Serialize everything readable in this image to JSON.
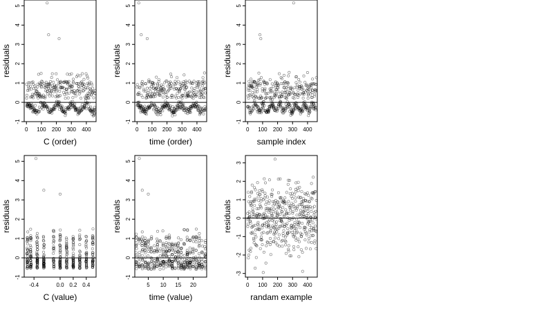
{
  "figure": {
    "colors": {
      "ink": "#000000",
      "point": "#000000",
      "background": "#ffffff"
    }
  },
  "chart_data": [
    {
      "type": "scatter",
      "xlabel": "C (order)",
      "ylabel": "residuals",
      "xlim": [
        -15,
        465
      ],
      "ylim": [
        -1,
        5.3
      ],
      "xticks": [
        0,
        100,
        200,
        300,
        400
      ],
      "xtick_labels": [
        "0",
        "100",
        "200",
        "300",
        "400"
      ],
      "yticks": [
        -1,
        0,
        1,
        2,
        3,
        4,
        5
      ],
      "ytick_labels": [
        "-1",
        "0",
        "1",
        "2",
        "3",
        "4",
        "5"
      ],
      "hline": 0,
      "n_points": 460,
      "outliers": [
        [
          138,
          5.15
        ],
        [
          148,
          3.5
        ],
        [
          218,
          3.3
        ]
      ],
      "pattern": "ordered by C: residuals -0.6 to 1.5, wavy cluster below zero"
    },
    {
      "type": "scatter",
      "xlabel": "time (order)",
      "ylabel": "residuals",
      "xlim": [
        -15,
        465
      ],
      "ylim": [
        -1,
        5.3
      ],
      "xticks": [
        0,
        100,
        200,
        300,
        400
      ],
      "xtick_labels": [
        "0",
        "100",
        "200",
        "300",
        "400"
      ],
      "yticks": [
        -1,
        0,
        1,
        2,
        3,
        4,
        5
      ],
      "ytick_labels": [
        "-1",
        "0",
        "1",
        "2",
        "3",
        "4",
        "5"
      ],
      "hline": 0,
      "n_points": 460,
      "outliers": [
        [
          12,
          5.15
        ],
        [
          28,
          3.5
        ],
        [
          68,
          3.3
        ]
      ],
      "pattern": "ordered by time: residuals -0.6 to 1.5, wavy cluster below zero"
    },
    {
      "type": "scatter",
      "xlabel": "sample index",
      "ylabel": "residuals",
      "xlim": [
        -15,
        465
      ],
      "ylim": [
        -1,
        5.3
      ],
      "xticks": [
        0,
        100,
        200,
        300,
        400
      ],
      "xtick_labels": [
        "0",
        "100",
        "200",
        "300",
        "400"
      ],
      "yticks": [
        -1,
        0,
        1,
        2,
        3,
        4,
        5
      ],
      "ytick_labels": [
        "-1",
        "0",
        "1",
        "2",
        "3",
        "4",
        "5"
      ],
      "hline": 0,
      "n_points": 460,
      "outliers": [
        [
          307,
          5.15
        ],
        [
          82,
          3.5
        ],
        [
          88,
          3.3
        ]
      ],
      "pattern": "sample order: residuals -0.6 to 1.5 with periodic dips below zero"
    },
    {
      "type": "scatter",
      "xlabel": "C (value)",
      "ylabel": "residuals",
      "xlim": [
        -0.55,
        0.55
      ],
      "ylim": [
        -1,
        5.3
      ],
      "xticks": [
        -0.4,
        0.0,
        0.2,
        0.4
      ],
      "xtick_labels": [
        "-0.4",
        "0.0",
        "0.2",
        "0.4"
      ],
      "yticks": [
        -1,
        0,
        1,
        2,
        3,
        4,
        5
      ],
      "ytick_labels": [
        "-1",
        "0",
        "1",
        "2",
        "3",
        "4",
        "5"
      ],
      "hline": 0,
      "n_points": 420,
      "columns": [
        -0.5,
        -0.45,
        -0.35,
        -0.25,
        -0.1,
        0.0,
        0.1,
        0.2,
        0.3,
        0.4,
        0.5
      ],
      "outliers": [
        [
          -0.37,
          5.15
        ],
        [
          -0.25,
          3.5
        ],
        [
          0.0,
          3.3
        ]
      ],
      "pattern": "points stacked in vertical columns at discrete C values"
    },
    {
      "type": "scatter",
      "xlabel": "time (value)",
      "ylabel": "residuals",
      "xlim": [
        0.5,
        24.5
      ],
      "ylim": [
        -1,
        5.3
      ],
      "xticks": [
        5,
        10,
        15,
        20
      ],
      "xtick_labels": [
        "5",
        "10",
        "15",
        "20"
      ],
      "yticks": [
        -1,
        0,
        1,
        2,
        3,
        4,
        5
      ],
      "ytick_labels": [
        "-1",
        "0",
        "1",
        "2",
        "3",
        "4",
        "5"
      ],
      "hline": 0,
      "n_points": 460,
      "outliers": [
        [
          2,
          5.15
        ],
        [
          3,
          3.5
        ],
        [
          5,
          3.3
        ]
      ],
      "pattern": "points in vertical columns at integer times 1-24"
    },
    {
      "type": "scatter",
      "xlabel": "randam example",
      "ylabel": "residuals",
      "xlim": [
        -15,
        465
      ],
      "ylim": [
        -3.2,
        3.4
      ],
      "xticks": [
        0,
        100,
        200,
        300,
        400
      ],
      "xtick_labels": [
        "0",
        "100",
        "200",
        "300",
        "400"
      ],
      "yticks": [
        -3,
        -2,
        -1,
        0,
        1,
        2,
        3
      ],
      "ytick_labels": [
        "-3",
        "-2",
        "-1",
        "0",
        "1",
        "2",
        "3"
      ],
      "hline": 0,
      "n_points": 460,
      "outliers": [],
      "pattern": "random normal noise, sd approx 1, range -3 to 3.2"
    }
  ]
}
